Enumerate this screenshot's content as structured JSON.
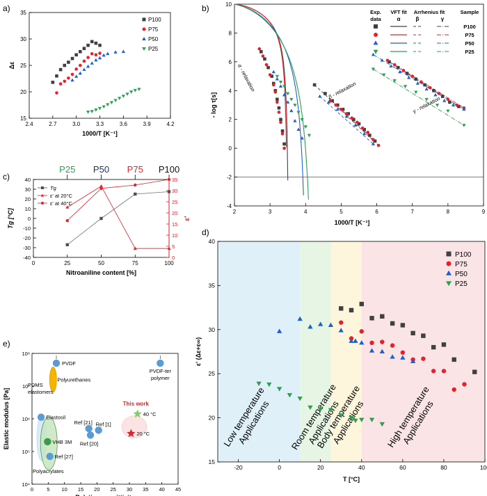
{
  "figure": {
    "panels": [
      {
        "id": "a",
        "label": "a)"
      },
      {
        "id": "b",
        "label": "b)"
      },
      {
        "id": "c",
        "label": "c)"
      },
      {
        "id": "d",
        "label": "d)"
      },
      {
        "id": "e",
        "label": "e)"
      }
    ]
  },
  "colors": {
    "P100": "#404040",
    "P75": "#e8202a",
    "P50": "#1f60d0",
    "P25": "#2aa050",
    "blue_zone": "#dff0f8",
    "green_zone": "#e6f5e4",
    "yellow_zone": "#fdf5dc",
    "red_zone": "#fbe4e6",
    "marker_blue": "#5b9bd5",
    "this_work": "#e8202a"
  },
  "chart_data": [
    {
      "id": "a",
      "type": "scatter",
      "title": "",
      "xlabel": "1000/T [K⁻¹]",
      "ylabel": "Δε",
      "xlim": [
        2.4,
        4.2
      ],
      "ylim": [
        15,
        35
      ],
      "xticks": [
        "2.4",
        "2.7",
        "3.0",
        "3.3",
        "3.6",
        "3.9",
        "4.2"
      ],
      "yticks": [
        "15",
        "20",
        "25",
        "30",
        "35"
      ],
      "legend_position": "top-right",
      "series": [
        {
          "name": "P100",
          "marker": "square",
          "x": [
            2.7,
            2.75,
            2.8,
            2.85,
            2.9,
            2.95,
            3.0,
            3.05,
            3.1,
            3.15,
            3.2,
            3.25,
            3.3
          ],
          "y": [
            21.8,
            23.0,
            24.2,
            25.0,
            25.6,
            26.3,
            27.0,
            27.6,
            28.2,
            28.8,
            29.5,
            29.2,
            28.8
          ]
        },
        {
          "name": "P75",
          "marker": "circle",
          "x": [
            2.75,
            2.8,
            2.85,
            2.9,
            2.95,
            3.0,
            3.05,
            3.1,
            3.15,
            3.2,
            3.25,
            3.3
          ],
          "y": [
            19.8,
            21.5,
            22.0,
            22.6,
            23.3,
            24.3,
            25.0,
            25.8,
            26.5,
            27.2,
            27.0,
            27.3
          ]
        },
        {
          "name": "P50",
          "marker": "triangle-up",
          "x": [
            2.95,
            3.0,
            3.05,
            3.1,
            3.15,
            3.2,
            3.25,
            3.3,
            3.35,
            3.4,
            3.5,
            3.6
          ],
          "y": [
            22.2,
            22.9,
            23.5,
            24.2,
            24.8,
            25.4,
            26.0,
            26.4,
            26.9,
            27.2,
            27.5,
            27.6
          ]
        },
        {
          "name": "P25",
          "marker": "triangle-down",
          "x": [
            3.15,
            3.2,
            3.25,
            3.3,
            3.35,
            3.4,
            3.45,
            3.5,
            3.55,
            3.6,
            3.65,
            3.7,
            3.75,
            3.8
          ],
          "y": [
            16.2,
            16.3,
            16.6,
            16.9,
            17.2,
            17.6,
            18.0,
            18.4,
            18.8,
            19.2,
            19.6,
            20.0,
            20.3,
            20.5
          ]
        }
      ]
    },
    {
      "id": "b",
      "type": "scatter",
      "title": "",
      "xlabel": "1000/T [K⁻¹]",
      "ylabel": "- log τ[s]",
      "xlim": [
        2,
        9
      ],
      "ylim": [
        -4,
        10
      ],
      "xticks": [
        "2",
        "3",
        "4",
        "5",
        "6",
        "7",
        "8",
        "9"
      ],
      "yticks": [
        "-4",
        "-2",
        "0",
        "2",
        "4",
        "6",
        "8",
        "10"
      ],
      "reference_line_y": -2,
      "legend_header": {
        "exp": "Exp. data",
        "vft": "VFT fit",
        "arrhenius": "Arrhenius fit",
        "sample": "Sample",
        "alpha": "α",
        "beta": "β",
        "gamma": "γ"
      },
      "annotations": [
        "α - relaxation",
        "β - relaxation",
        "γ - relaxation"
      ],
      "vft_fits": [
        {
          "name": "P100",
          "T0_inv": 3.55,
          "B": 1.3
        },
        {
          "name": "P75",
          "T0_inv": 3.52,
          "B": 1.3
        },
        {
          "name": "P50",
          "T0_inv": 4.1,
          "B": 2.4
        },
        {
          "name": "P25",
          "T0_inv": 4.3,
          "B": 2.8
        }
      ],
      "series": [
        {
          "name": "P100",
          "marker": "square",
          "alpha_x": [
            2.75,
            2.85,
            2.95,
            3.05,
            3.1,
            3.15,
            3.2,
            3.25,
            3.3,
            3.35,
            3.4
          ],
          "alpha_y": [
            6.7,
            6.2,
            5.6,
            5.0,
            4.5,
            4.0,
            3.4,
            2.8,
            2.0,
            1.2,
            0.3
          ],
          "beta_x": [
            4.25,
            4.55,
            4.75,
            4.9,
            5.05,
            5.2,
            5.35,
            5.5,
            5.65,
            5.8,
            5.95
          ],
          "beta_y": [
            4.4,
            3.8,
            3.3,
            3.0,
            2.7,
            2.4,
            2.0,
            1.7,
            1.3,
            0.9,
            0.5
          ],
          "gamma_x": [
            6.35,
            6.6,
            6.85,
            7.1,
            7.35,
            7.6,
            7.85,
            8.05,
            8.3
          ],
          "gamma_y": [
            6.0,
            5.6,
            5.2,
            4.8,
            4.4,
            4.0,
            3.6,
            3.2,
            2.9
          ]
        },
        {
          "name": "P75",
          "marker": "circle",
          "alpha_x": [
            2.7,
            2.8,
            2.9,
            3.0,
            3.1,
            3.15,
            3.2,
            3.25,
            3.3,
            3.35,
            3.4
          ],
          "alpha_y": [
            6.9,
            6.4,
            5.8,
            5.1,
            4.4,
            3.9,
            3.2,
            2.5,
            1.8,
            1.0,
            0.0
          ],
          "beta_x": [
            4.7,
            4.85,
            5.0,
            5.15,
            5.3,
            5.45,
            5.6,
            5.75,
            5.9,
            6.05
          ],
          "beta_y": [
            3.3,
            3.0,
            2.7,
            2.4,
            2.1,
            1.8,
            1.4,
            1.1,
            0.6,
            0.2
          ],
          "gamma_x": [
            6.3,
            6.5,
            6.75,
            7.0,
            7.25,
            7.5,
            7.75,
            8.0,
            8.25,
            8.45
          ],
          "gamma_y": [
            6.1,
            5.8,
            5.4,
            5.0,
            4.6,
            4.2,
            3.8,
            3.4,
            3.0,
            2.8
          ]
        },
        {
          "name": "P50",
          "marker": "triangle-up",
          "alpha_x": [
            3.1,
            3.2,
            3.3,
            3.4,
            3.5,
            3.6,
            3.7,
            3.8,
            3.9
          ],
          "alpha_y": [
            5.3,
            4.8,
            4.3,
            3.7,
            3.2,
            2.6,
            1.9,
            1.3,
            0.7
          ],
          "beta_x": [
            4.4,
            4.65,
            4.9,
            5.15,
            5.4,
            5.65,
            5.9
          ],
          "beta_y": [
            3.6,
            3.2,
            2.7,
            2.2,
            1.6,
            1.0,
            0.3
          ],
          "gamma_x": [
            5.9,
            6.15,
            6.4,
            6.65,
            6.9,
            7.15,
            7.4,
            7.65,
            7.9,
            8.15,
            8.45
          ],
          "gamma_y": [
            6.5,
            6.1,
            5.7,
            5.3,
            4.9,
            4.5,
            4.1,
            3.7,
            3.3,
            3.0,
            2.7
          ]
        },
        {
          "name": "P25",
          "marker": "triangle-down",
          "alpha_x": [
            3.2,
            3.3,
            3.4,
            3.5,
            3.6,
            3.7,
            3.8,
            3.9,
            4.0,
            4.1
          ],
          "alpha_y": [
            5.0,
            4.6,
            4.3,
            3.8,
            3.4,
            3.0,
            2.5,
            2.0,
            1.5,
            0.9
          ],
          "beta_x": [],
          "beta_y": [],
          "gamma_x": [
            5.9,
            6.2,
            6.5,
            6.8,
            7.1,
            7.4,
            7.7,
            8.0,
            8.45
          ],
          "gamma_y": [
            5.5,
            5.1,
            4.7,
            4.3,
            3.9,
            3.4,
            3.0,
            2.6,
            1.6
          ]
        }
      ]
    },
    {
      "id": "c",
      "type": "line",
      "title": "",
      "xlabel": "Nitroaniline content [%]",
      "ylabel": "T_g [°C]",
      "y2label": "ε'",
      "xlim": [
        0,
        100
      ],
      "ylim": [
        -40,
        40
      ],
      "y2lim": [
        0,
        35
      ],
      "xticks": [
        "0",
        "25",
        "50",
        "75",
        "100"
      ],
      "yticks": [
        "-40",
        "-30",
        "-20",
        "-10",
        "0",
        "10",
        "20",
        "30",
        "40"
      ],
      "y2ticks": [
        "0",
        "5",
        "10",
        "15",
        "20",
        "25",
        "30",
        "35"
      ],
      "top_labels": [
        {
          "text": "P25",
          "x": 25,
          "color": "#2aa050"
        },
        {
          "text": "P50",
          "x": 50,
          "color": "#1a2f7a"
        },
        {
          "text": "P75",
          "x": 75,
          "color": "#e8202a"
        },
        {
          "text": "P100",
          "x": 100,
          "color": "#111111"
        }
      ],
      "x": [
        25,
        50,
        75,
        100
      ],
      "series": [
        {
          "name": "T_g",
          "legend": "T_g",
          "axis": "left",
          "marker": "square",
          "values": [
            -27,
            0,
            25,
            27.5
          ]
        },
        {
          "name": "eps_20C",
          "legend": "ε' at 20°C",
          "axis": "right",
          "marker": "triangle-up",
          "values": [
            22.5,
            32,
            4,
            4
          ]
        },
        {
          "name": "eps_40C",
          "legend": "ε' at 40°C",
          "axis": "right",
          "marker": "circle",
          "values": [
            16.5,
            31,
            32.5,
            35
          ]
        }
      ]
    },
    {
      "id": "d",
      "type": "scatter",
      "title": "",
      "xlabel": "T [°C]",
      "ylabel": "ε' (Δε+ε∞)",
      "xlim": [
        -30,
        100
      ],
      "ylim": [
        15,
        40
      ],
      "xticks": [
        "-20",
        "0",
        "20",
        "40",
        "60",
        "80",
        "100"
      ],
      "yticks": [
        "15",
        "20",
        "25",
        "30",
        "35",
        "40"
      ],
      "legend_position": "top-right",
      "zones": [
        {
          "label": "Low temperature Applications",
          "from": -30,
          "to": 10,
          "color": "#dff0f8"
        },
        {
          "label": "Room temperature Applications",
          "from": 10,
          "to": 25,
          "color": "#e6f5e4"
        },
        {
          "label": "Body temperature Applications",
          "from": 25,
          "to": 40,
          "color": "#fdf5dc"
        },
        {
          "label": "High temperature Applications",
          "from": 40,
          "to": 100,
          "color": "#fbe4e6"
        }
      ],
      "series": [
        {
          "name": "P100",
          "marker": "square",
          "x": [
            30,
            35,
            40,
            45,
            50,
            55,
            60,
            65,
            70,
            75,
            80,
            85,
            95
          ],
          "y": [
            32.4,
            32.2,
            32.9,
            31.3,
            31.5,
            30.7,
            30.5,
            29.6,
            29.3,
            28.0,
            28.3,
            26.6,
            25.2
          ]
        },
        {
          "name": "P75",
          "marker": "circle",
          "x": [
            30,
            35,
            40,
            45,
            50,
            55,
            60,
            65,
            70,
            75,
            80,
            85,
            90
          ],
          "y": [
            30.8,
            29.0,
            29.8,
            28.5,
            28.6,
            28.2,
            27.4,
            26.6,
            26.7,
            25.3,
            25.3,
            23.2,
            23.8
          ]
        },
        {
          "name": "P50",
          "marker": "triangle-up",
          "x": [
            0,
            10,
            15,
            20,
            25,
            30,
            35,
            37,
            40,
            45,
            50,
            55,
            60,
            65
          ],
          "y": [
            29.8,
            31.2,
            30.3,
            30.6,
            30.5,
            29.9,
            28.7,
            28.7,
            28.5,
            27.6,
            27.5,
            26.9,
            26.8,
            26.4
          ]
        },
        {
          "name": "P25",
          "marker": "triangle-down",
          "x": [
            -10,
            -5,
            0,
            5,
            10,
            15,
            20,
            25,
            30,
            35,
            37,
            40,
            45,
            50
          ],
          "y": [
            23.9,
            23.8,
            23.3,
            22.6,
            22.2,
            21.2,
            21.0,
            20.9,
            20.3,
            20.0,
            19.7,
            19.8,
            19.8,
            19.3
          ]
        }
      ]
    },
    {
      "id": "e",
      "type": "scatter",
      "title": "",
      "xlabel": "Relative permittivity",
      "ylabel": "Elastic modulus [Pa]",
      "xlim": [
        0,
        45
      ],
      "ylim_log10": [
        4,
        8
      ],
      "xticks": [
        "0",
        "5",
        "10",
        "15",
        "20",
        "25",
        "30",
        "35",
        "40",
        "45"
      ],
      "yticks": [
        "10⁴",
        "10⁵",
        "10⁶",
        "10⁷",
        "10⁸"
      ],
      "points": [
        {
          "label": "PVDF",
          "x": 7.5,
          "log_y": 7.7
        },
        {
          "label": "Polyurethanes",
          "x": 6.5,
          "log_y": 7.2
        },
        {
          "label": "PDMS elastomers",
          "x": 2.8,
          "log_y": 6.2
        },
        {
          "label": "Elastosil",
          "x": 2.8,
          "log_y": 6.05
        },
        {
          "label": "VHB 3M",
          "x": 4.8,
          "log_y": 5.3
        },
        {
          "label": "Ref [27]",
          "x": 5.5,
          "log_y": 4.85
        },
        {
          "label": "Polyacrylates",
          "x": 5.0,
          "log_y": 4.4
        },
        {
          "label": "Ref [21]",
          "x": 17.5,
          "log_y": 5.7
        },
        {
          "label": "Ref [1]",
          "x": 20.5,
          "log_y": 5.65
        },
        {
          "label": "Ref [20]",
          "x": 18.0,
          "log_y": 5.5
        },
        {
          "label": "PVDF-ter polymer",
          "x": 39.5,
          "log_y": 7.7
        },
        {
          "label": "40 °C",
          "x": 32.5,
          "log_y": 6.15
        },
        {
          "label": "20 °C",
          "x": 30.5,
          "log_y": 5.55
        }
      ],
      "annotation": "This work"
    }
  ]
}
